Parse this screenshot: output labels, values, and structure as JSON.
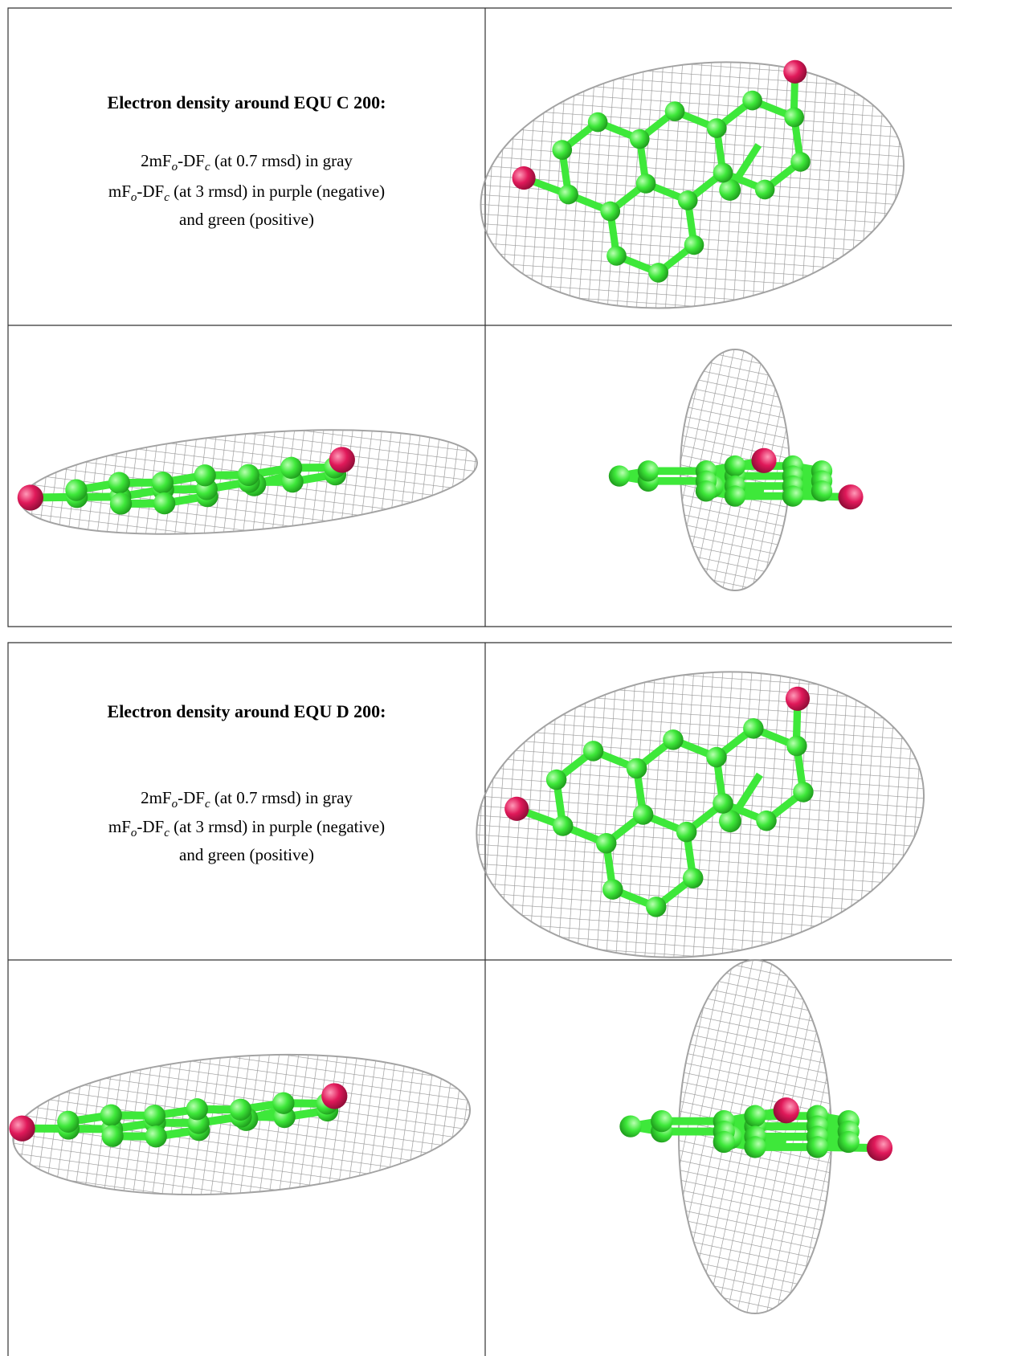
{
  "blocks": [
    {
      "title": "Electron density around EQU C 200:",
      "caption": [
        [
          "2mF",
          "o",
          "-DF",
          "c",
          " (at 0.7 rmsd) in gray"
        ],
        [
          "mF",
          "o",
          "-DF",
          "c",
          " (at 3 rmsd) in purple (negative)"
        ],
        [
          "and green (positive)"
        ]
      ]
    },
    {
      "title": "Electron density around EQU D 200:",
      "caption": [
        [
          "2mF",
          "o",
          "-DF",
          "c",
          " (at 0.7 rmsd) in gray"
        ],
        [
          "mF",
          "o",
          "-DF",
          "c",
          " (at 3 rmsd) in purple (negative)"
        ],
        [
          "and green (positive)"
        ]
      ]
    }
  ]
}
